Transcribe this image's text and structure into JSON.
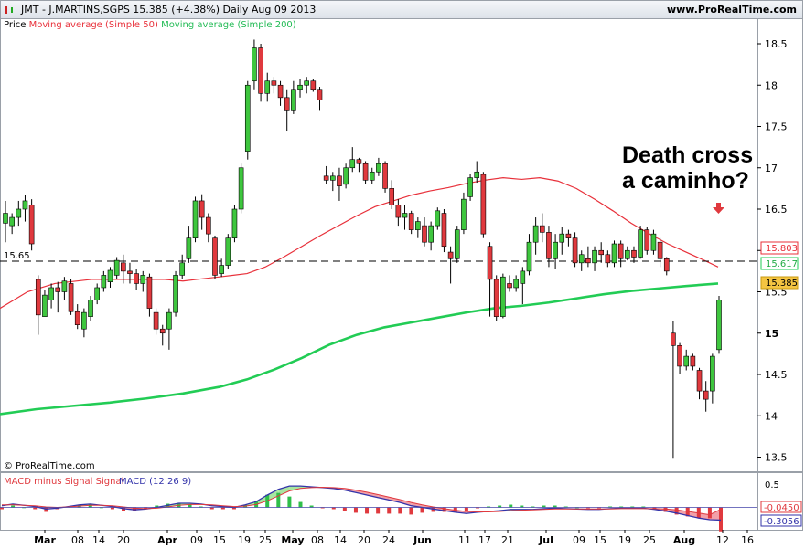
{
  "header": {
    "title": "JMT - J.MARTINS,SGPS    15.385 (+4.38%)    Daily  Aug 09 2013",
    "url": "www.ProRealTime.com"
  },
  "legend": {
    "price": "Price",
    "ma50": "Moving average (Simple 50)",
    "ma200": "Moving average (Simple 200)"
  },
  "colors": {
    "up": "#3ec63e",
    "down": "#e0393e",
    "ma50": "#e8303a",
    "ma200": "#22cc55",
    "macd": "#3333aa",
    "signal_fill_pos": "#a8e6a0",
    "signal_fill_neg": "#f2a0a8",
    "hist": "#2fbf4a"
  },
  "watermark": "© ProRealTime.com",
  "annotation": {
    "line1": "Death cross",
    "line2": "a caminho?"
  },
  "ref_level": "15.65",
  "price_tags": {
    "ma50": "15.803",
    "ma200": "15.617",
    "last": "15.385"
  },
  "macd_legend": {
    "hist": "MACD minus Signal Signal",
    "macd": "MACD (12 26 9)"
  },
  "macd_tags": {
    "zero_tick": "0.5",
    "signal": "-0.0450",
    "macd": "-0.3056"
  },
  "chart_data": {
    "type": "candlestick",
    "price_axis": {
      "ticks": [
        13.5,
        14,
        14.5,
        15,
        15.5,
        16,
        16.5,
        17,
        17.5,
        18,
        18.5
      ]
    },
    "x_labels": [
      "Mar",
      "08",
      "14",
      "20",
      "Apr",
      "09",
      "15",
      "19",
      "25",
      "May",
      "08",
      "14",
      "20",
      "24",
      "Jun",
      "11",
      "17",
      "21",
      "Jul",
      "09",
      "15",
      "19",
      "25",
      "Aug",
      "12",
      "16"
    ],
    "candles": [
      {
        "o": 16.33,
        "h": 16.6,
        "l": 16.1,
        "c": 16.45
      },
      {
        "o": 16.3,
        "h": 16.45,
        "l": 16.2,
        "c": 16.4
      },
      {
        "o": 16.4,
        "h": 16.6,
        "l": 16.3,
        "c": 16.5
      },
      {
        "o": 16.5,
        "h": 16.67,
        "l": 16.35,
        "c": 16.6
      },
      {
        "o": 16.55,
        "h": 16.62,
        "l": 16.0,
        "c": 16.08
      },
      {
        "o": 15.65,
        "h": 15.7,
        "l": 14.98,
        "c": 15.22
      },
      {
        "o": 15.2,
        "h": 15.52,
        "l": 15.2,
        "c": 15.46
      },
      {
        "o": 15.4,
        "h": 15.6,
        "l": 15.3,
        "c": 15.55
      },
      {
        "o": 15.55,
        "h": 15.62,
        "l": 15.25,
        "c": 15.5
      },
      {
        "o": 15.5,
        "h": 15.68,
        "l": 15.4,
        "c": 15.63
      },
      {
        "o": 15.6,
        "h": 15.65,
        "l": 15.22,
        "c": 15.26
      },
      {
        "o": 15.26,
        "h": 15.35,
        "l": 15.05,
        "c": 15.1
      },
      {
        "o": 15.05,
        "h": 15.3,
        "l": 14.95,
        "c": 15.25
      },
      {
        "o": 15.2,
        "h": 15.45,
        "l": 15.15,
        "c": 15.4
      },
      {
        "o": 15.4,
        "h": 15.6,
        "l": 15.35,
        "c": 15.55
      },
      {
        "o": 15.55,
        "h": 15.75,
        "l": 15.5,
        "c": 15.7
      },
      {
        "o": 15.62,
        "h": 15.8,
        "l": 15.55,
        "c": 15.76
      },
      {
        "o": 15.7,
        "h": 15.92,
        "l": 15.65,
        "c": 15.88
      },
      {
        "o": 15.85,
        "h": 15.95,
        "l": 15.6,
        "c": 15.75
      },
      {
        "o": 15.75,
        "h": 15.85,
        "l": 15.6,
        "c": 15.72
      },
      {
        "o": 15.72,
        "h": 15.78,
        "l": 15.52,
        "c": 15.6
      },
      {
        "o": 15.6,
        "h": 15.75,
        "l": 15.5,
        "c": 15.7
      },
      {
        "o": 15.68,
        "h": 15.72,
        "l": 15.2,
        "c": 15.3
      },
      {
        "o": 15.25,
        "h": 15.3,
        "l": 14.98,
        "c": 15.05
      },
      {
        "o": 15.05,
        "h": 15.1,
        "l": 14.85,
        "c": 15.0
      },
      {
        "o": 15.05,
        "h": 15.3,
        "l": 14.8,
        "c": 15.25
      },
      {
        "o": 15.25,
        "h": 15.75,
        "l": 15.2,
        "c": 15.7
      },
      {
        "o": 15.7,
        "h": 15.95,
        "l": 15.65,
        "c": 15.85
      },
      {
        "o": 15.9,
        "h": 16.3,
        "l": 15.85,
        "c": 16.15
      },
      {
        "o": 16.15,
        "h": 16.65,
        "l": 16.1,
        "c": 16.6
      },
      {
        "o": 16.6,
        "h": 16.68,
        "l": 16.25,
        "c": 16.4
      },
      {
        "o": 16.4,
        "h": 16.45,
        "l": 16.1,
        "c": 16.2
      },
      {
        "o": 16.15,
        "h": 16.18,
        "l": 15.65,
        "c": 15.7
      },
      {
        "o": 15.72,
        "h": 15.9,
        "l": 15.68,
        "c": 15.82
      },
      {
        "o": 15.82,
        "h": 16.2,
        "l": 15.78,
        "c": 16.15
      },
      {
        "o": 16.15,
        "h": 16.55,
        "l": 16.1,
        "c": 16.5
      },
      {
        "o": 16.5,
        "h": 17.05,
        "l": 16.45,
        "c": 17.0
      },
      {
        "o": 17.2,
        "h": 18.05,
        "l": 17.1,
        "c": 18.0
      },
      {
        "o": 18.05,
        "h": 18.55,
        "l": 17.95,
        "c": 18.45
      },
      {
        "o": 18.45,
        "h": 18.5,
        "l": 17.8,
        "c": 17.9
      },
      {
        "o": 17.9,
        "h": 18.15,
        "l": 17.8,
        "c": 18.05
      },
      {
        "o": 18.05,
        "h": 18.1,
        "l": 17.9,
        "c": 18.0
      },
      {
        "o": 18.0,
        "h": 18.05,
        "l": 17.75,
        "c": 17.85
      },
      {
        "o": 17.85,
        "h": 17.95,
        "l": 17.45,
        "c": 17.7
      },
      {
        "o": 17.7,
        "h": 18.05,
        "l": 17.65,
        "c": 17.95
      },
      {
        "o": 17.95,
        "h": 18.08,
        "l": 17.85,
        "c": 18.0
      },
      {
        "o": 18.0,
        "h": 18.1,
        "l": 17.9,
        "c": 18.05
      },
      {
        "o": 18.05,
        "h": 18.08,
        "l": 17.92,
        "c": 17.95
      },
      {
        "o": 17.95,
        "h": 17.98,
        "l": 17.7,
        "c": 17.82
      },
      {
        "o": 16.9,
        "h": 17.02,
        "l": 16.8,
        "c": 16.85
      },
      {
        "o": 16.85,
        "h": 16.95,
        "l": 16.72,
        "c": 16.9
      },
      {
        "o": 16.9,
        "h": 17.0,
        "l": 16.6,
        "c": 16.78
      },
      {
        "o": 16.8,
        "h": 17.05,
        "l": 16.75,
        "c": 17.0
      },
      {
        "o": 17.0,
        "h": 17.25,
        "l": 16.95,
        "c": 17.1
      },
      {
        "o": 17.1,
        "h": 17.12,
        "l": 16.95,
        "c": 17.05
      },
      {
        "o": 17.05,
        "h": 17.08,
        "l": 16.8,
        "c": 16.85
      },
      {
        "o": 16.85,
        "h": 17.0,
        "l": 16.8,
        "c": 16.95
      },
      {
        "o": 16.95,
        "h": 17.12,
        "l": 16.9,
        "c": 17.05
      },
      {
        "o": 17.05,
        "h": 17.08,
        "l": 16.7,
        "c": 16.75
      },
      {
        "o": 16.75,
        "h": 16.85,
        "l": 16.5,
        "c": 16.55
      },
      {
        "o": 16.55,
        "h": 16.62,
        "l": 16.3,
        "c": 16.4
      },
      {
        "o": 16.4,
        "h": 16.55,
        "l": 16.25,
        "c": 16.45
      },
      {
        "o": 16.45,
        "h": 16.48,
        "l": 16.2,
        "c": 16.25
      },
      {
        "o": 16.25,
        "h": 16.4,
        "l": 16.15,
        "c": 16.35
      },
      {
        "o": 16.3,
        "h": 16.4,
        "l": 16.05,
        "c": 16.1
      },
      {
        "o": 16.1,
        "h": 16.35,
        "l": 16.0,
        "c": 16.3
      },
      {
        "o": 16.3,
        "h": 16.52,
        "l": 16.25,
        "c": 16.48
      },
      {
        "o": 16.45,
        "h": 16.5,
        "l": 15.98,
        "c": 16.05
      },
      {
        "o": 15.98,
        "h": 16.05,
        "l": 15.6,
        "c": 15.9
      },
      {
        "o": 15.9,
        "h": 16.3,
        "l": 15.85,
        "c": 16.25
      },
      {
        "o": 16.25,
        "h": 16.7,
        "l": 16.2,
        "c": 16.62
      },
      {
        "o": 16.65,
        "h": 16.92,
        "l": 16.6,
        "c": 16.88
      },
      {
        "o": 16.88,
        "h": 17.08,
        "l": 16.82,
        "c": 16.95
      },
      {
        "o": 16.92,
        "h": 16.95,
        "l": 16.15,
        "c": 16.2
      },
      {
        "o": 16.05,
        "h": 16.1,
        "l": 15.2,
        "c": 15.65
      },
      {
        "o": 15.65,
        "h": 15.7,
        "l": 15.15,
        "c": 15.2
      },
      {
        "o": 15.2,
        "h": 15.72,
        "l": 15.18,
        "c": 15.68
      },
      {
        "o": 15.6,
        "h": 15.7,
        "l": 15.5,
        "c": 15.55
      },
      {
        "o": 15.55,
        "h": 15.7,
        "l": 15.5,
        "c": 15.65
      },
      {
        "o": 15.6,
        "h": 15.8,
        "l": 15.35,
        "c": 15.75
      },
      {
        "o": 15.75,
        "h": 16.2,
        "l": 15.7,
        "c": 16.1
      },
      {
        "o": 16.1,
        "h": 16.4,
        "l": 15.95,
        "c": 16.3
      },
      {
        "o": 16.3,
        "h": 16.45,
        "l": 16.1,
        "c": 16.22
      },
      {
        "o": 16.22,
        "h": 16.3,
        "l": 15.8,
        "c": 15.9
      },
      {
        "o": 15.9,
        "h": 16.2,
        "l": 15.78,
        "c": 16.1
      },
      {
        "o": 16.1,
        "h": 16.28,
        "l": 15.95,
        "c": 16.2
      },
      {
        "o": 16.2,
        "h": 16.25,
        "l": 16.05,
        "c": 16.15
      },
      {
        "o": 16.15,
        "h": 16.22,
        "l": 15.8,
        "c": 15.85
      },
      {
        "o": 15.85,
        "h": 16.0,
        "l": 15.75,
        "c": 15.95
      },
      {
        "o": 15.9,
        "h": 16.05,
        "l": 15.8,
        "c": 15.85
      },
      {
        "o": 15.85,
        "h": 16.05,
        "l": 15.75,
        "c": 16.0
      },
      {
        "o": 16.0,
        "h": 16.1,
        "l": 15.85,
        "c": 15.95
      },
      {
        "o": 15.95,
        "h": 16.0,
        "l": 15.8,
        "c": 15.85
      },
      {
        "o": 15.85,
        "h": 16.12,
        "l": 15.8,
        "c": 16.08
      },
      {
        "o": 16.08,
        "h": 16.12,
        "l": 15.8,
        "c": 15.9
      },
      {
        "o": 15.9,
        "h": 16.05,
        "l": 15.88,
        "c": 16.0
      },
      {
        "o": 16.0,
        "h": 16.05,
        "l": 15.85,
        "c": 15.92
      },
      {
        "o": 15.92,
        "h": 16.3,
        "l": 15.9,
        "c": 16.25
      },
      {
        "o": 16.25,
        "h": 16.28,
        "l": 15.95,
        "c": 16.0
      },
      {
        "o": 16.0,
        "h": 16.25,
        "l": 15.95,
        "c": 16.2
      },
      {
        "o": 16.1,
        "h": 16.15,
        "l": 15.8,
        "c": 15.9
      },
      {
        "o": 15.9,
        "h": 15.92,
        "l": 15.7,
        "c": 15.75
      },
      {
        "o": 15.0,
        "h": 15.15,
        "l": 13.48,
        "c": 14.85
      },
      {
        "o": 14.85,
        "h": 14.88,
        "l": 14.5,
        "c": 14.6
      },
      {
        "o": 14.6,
        "h": 14.8,
        "l": 14.55,
        "c": 14.72
      },
      {
        "o": 14.72,
        "h": 14.75,
        "l": 14.55,
        "c": 14.6
      },
      {
        "o": 14.55,
        "h": 14.58,
        "l": 14.2,
        "c": 14.3
      },
      {
        "o": 14.3,
        "h": 14.42,
        "l": 14.05,
        "c": 14.2
      },
      {
        "o": 14.3,
        "h": 14.75,
        "l": 14.15,
        "c": 14.72
      },
      {
        "o": 14.8,
        "h": 15.45,
        "l": 14.75,
        "c": 15.4
      }
    ],
    "ma50": [
      [
        0,
        15.3
      ],
      [
        30,
        15.5
      ],
      [
        60,
        15.6
      ],
      [
        100,
        15.65
      ],
      [
        180,
        15.65
      ],
      [
        200,
        15.63
      ],
      [
        215,
        15.65
      ],
      [
        240,
        15.68
      ],
      [
        270,
        15.72
      ],
      [
        290,
        15.8
      ],
      [
        310,
        15.92
      ],
      [
        330,
        16.05
      ],
      [
        350,
        16.18
      ],
      [
        370,
        16.3
      ],
      [
        390,
        16.42
      ],
      [
        410,
        16.53
      ],
      [
        430,
        16.6
      ],
      [
        450,
        16.67
      ],
      [
        470,
        16.72
      ],
      [
        490,
        16.76
      ],
      [
        510,
        16.81
      ],
      [
        530,
        16.85
      ],
      [
        550,
        16.88
      ],
      [
        570,
        16.86
      ],
      [
        590,
        16.88
      ],
      [
        610,
        16.84
      ],
      [
        630,
        16.75
      ],
      [
        650,
        16.62
      ],
      [
        670,
        16.48
      ],
      [
        690,
        16.33
      ],
      [
        710,
        16.2
      ],
      [
        730,
        16.08
      ],
      [
        750,
        15.98
      ],
      [
        770,
        15.88
      ],
      [
        785,
        15.8
      ]
    ],
    "ma200": [
      [
        0,
        14.02
      ],
      [
        40,
        14.08
      ],
      [
        80,
        14.12
      ],
      [
        120,
        14.16
      ],
      [
        160,
        14.21
      ],
      [
        200,
        14.27
      ],
      [
        240,
        14.35
      ],
      [
        270,
        14.44
      ],
      [
        300,
        14.56
      ],
      [
        330,
        14.7
      ],
      [
        360,
        14.86
      ],
      [
        390,
        14.98
      ],
      [
        420,
        15.07
      ],
      [
        450,
        15.13
      ],
      [
        480,
        15.19
      ],
      [
        510,
        15.25
      ],
      [
        540,
        15.3
      ],
      [
        570,
        15.33
      ],
      [
        600,
        15.37
      ],
      [
        630,
        15.42
      ],
      [
        660,
        15.47
      ],
      [
        690,
        15.51
      ],
      [
        720,
        15.54
      ],
      [
        750,
        15.57
      ],
      [
        785,
        15.6
      ]
    ],
    "macd": [
      0.04,
      0.08,
      0.05,
      0.02,
      -0.04,
      -0.02,
      0.02,
      0.06,
      0.08,
      0.05,
      0.02,
      -0.03,
      -0.06,
      -0.04,
      0.0,
      0.05,
      0.1,
      0.1,
      0.08,
      0.04,
      0.02,
      0.0,
      0.06,
      0.14,
      0.3,
      0.44,
      0.52,
      0.52,
      0.5,
      0.48,
      0.46,
      0.42,
      0.36,
      0.3,
      0.24,
      0.18,
      0.12,
      0.04,
      0.0,
      -0.04,
      -0.08,
      -0.12,
      -0.15,
      -0.12,
      -0.1,
      -0.08,
      -0.05,
      -0.05,
      -0.05,
      -0.03,
      -0.02,
      -0.03,
      -0.04,
      -0.05,
      -0.05,
      -0.03,
      -0.02,
      -0.02,
      -0.02,
      -0.05,
      -0.09,
      -0.14,
      -0.2,
      -0.26,
      -0.3,
      -0.31
    ],
    "signal": [
      0.06,
      0.06,
      0.05,
      0.04,
      0.01,
      0.0,
      0.01,
      0.03,
      0.05,
      0.05,
      0.04,
      0.01,
      -0.02,
      -0.03,
      -0.02,
      0.01,
      0.05,
      0.07,
      0.07,
      0.06,
      0.04,
      0.02,
      0.03,
      0.07,
      0.16,
      0.28,
      0.4,
      0.46,
      0.48,
      0.49,
      0.48,
      0.46,
      0.42,
      0.37,
      0.31,
      0.25,
      0.19,
      0.12,
      0.06,
      0.01,
      -0.03,
      -0.07,
      -0.1,
      -0.11,
      -0.11,
      -0.1,
      -0.08,
      -0.07,
      -0.06,
      -0.05,
      -0.04,
      -0.04,
      -0.04,
      -0.04,
      -0.04,
      -0.04,
      -0.03,
      -0.03,
      -0.03,
      -0.03,
      -0.04,
      -0.06,
      -0.1,
      -0.14,
      -0.18,
      -0.045
    ],
    "macd_axis": {
      "ticks": [
        0.5
      ]
    }
  }
}
